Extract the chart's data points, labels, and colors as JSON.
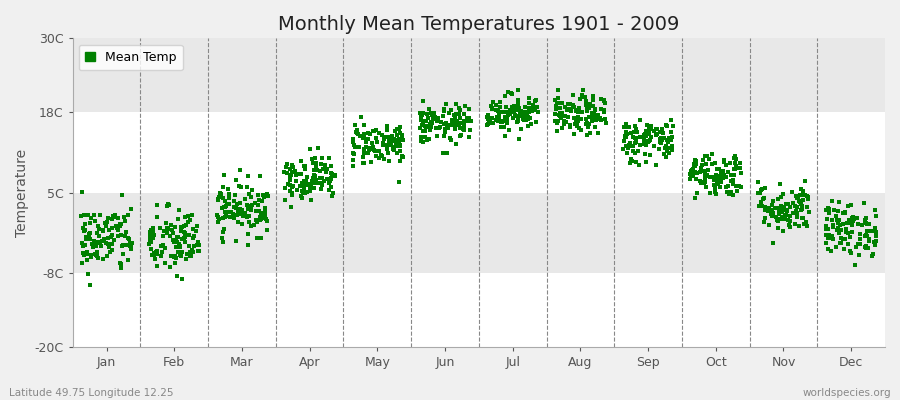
{
  "title": "Monthly Mean Temperatures 1901 - 2009",
  "ylabel": "Temperature",
  "bottom_left_text": "Latitude 49.75 Longitude 12.25",
  "bottom_right_text": "worldspecies.org",
  "ylim": [
    -20,
    30
  ],
  "yticks": [
    -20,
    -8,
    5,
    18,
    30
  ],
  "ytick_labels": [
    "-20C",
    "-8C",
    "5C",
    "18C",
    "30C"
  ],
  "months": [
    "Jan",
    "Feb",
    "Mar",
    "Apr",
    "May",
    "Jun",
    "Jul",
    "Aug",
    "Sep",
    "Oct",
    "Nov",
    "Dec"
  ],
  "month_centers": [
    1,
    2,
    3,
    4,
    5,
    6,
    7,
    8,
    9,
    10,
    11,
    12
  ],
  "dot_color": "#008000",
  "plot_bg_color": "#f0f0f0",
  "fig_bg_color": "#f0f0f0",
  "band_colors": [
    "#ffffff",
    "#e8e8e8"
  ],
  "n_years": 109,
  "mean_temps": [
    -2.5,
    -3.0,
    2.5,
    7.5,
    13.0,
    16.0,
    18.0,
    17.5,
    13.5,
    8.0,
    2.5,
    -1.0
  ],
  "std_temps": [
    2.8,
    2.8,
    2.2,
    1.8,
    1.8,
    1.6,
    1.5,
    1.6,
    1.8,
    1.8,
    2.0,
    2.2
  ],
  "legend_label": "Mean Temp",
  "title_fontsize": 14,
  "axis_fontsize": 10,
  "tick_fontsize": 9,
  "dot_size": 5,
  "legend_fontsize": 9
}
